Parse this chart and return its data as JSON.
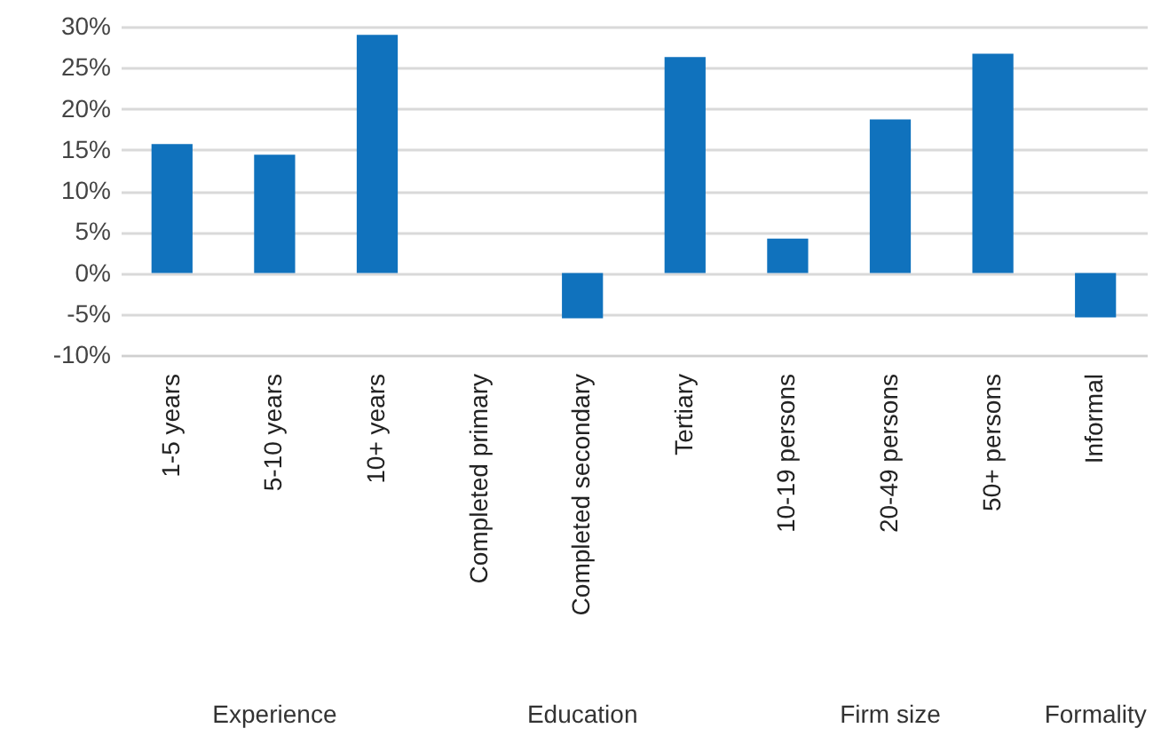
{
  "chart_data": {
    "type": "bar",
    "categories": [
      "1-5 years",
      "5-10 years",
      "10+ years",
      "Completed primary",
      "Completed secondary",
      "Tertiary",
      "10-19 persons",
      "20-49 persons",
      "50+ persons",
      "Informal"
    ],
    "values": [
      15.7,
      14.4,
      29.0,
      null,
      -5.5,
      26.3,
      4.2,
      18.7,
      26.7,
      -5.4
    ],
    "color": "#1072bd",
    "ylim": [
      -10,
      30
    ],
    "yticks": [
      {
        "value": -10,
        "label": "-10%"
      },
      {
        "value": -5,
        "label": "-5%"
      },
      {
        "value": 0,
        "label": "0%"
      },
      {
        "value": 5,
        "label": "5%"
      },
      {
        "value": 10,
        "label": "10%"
      },
      {
        "value": 15,
        "label": "15%"
      },
      {
        "value": 20,
        "label": "20%"
      },
      {
        "value": 25,
        "label": "25%"
      },
      {
        "value": 30,
        "label": "30%"
      }
    ],
    "grid": "y",
    "annotations": [
      "Experience",
      "Education",
      "Firm size",
      "Formality"
    ]
  }
}
